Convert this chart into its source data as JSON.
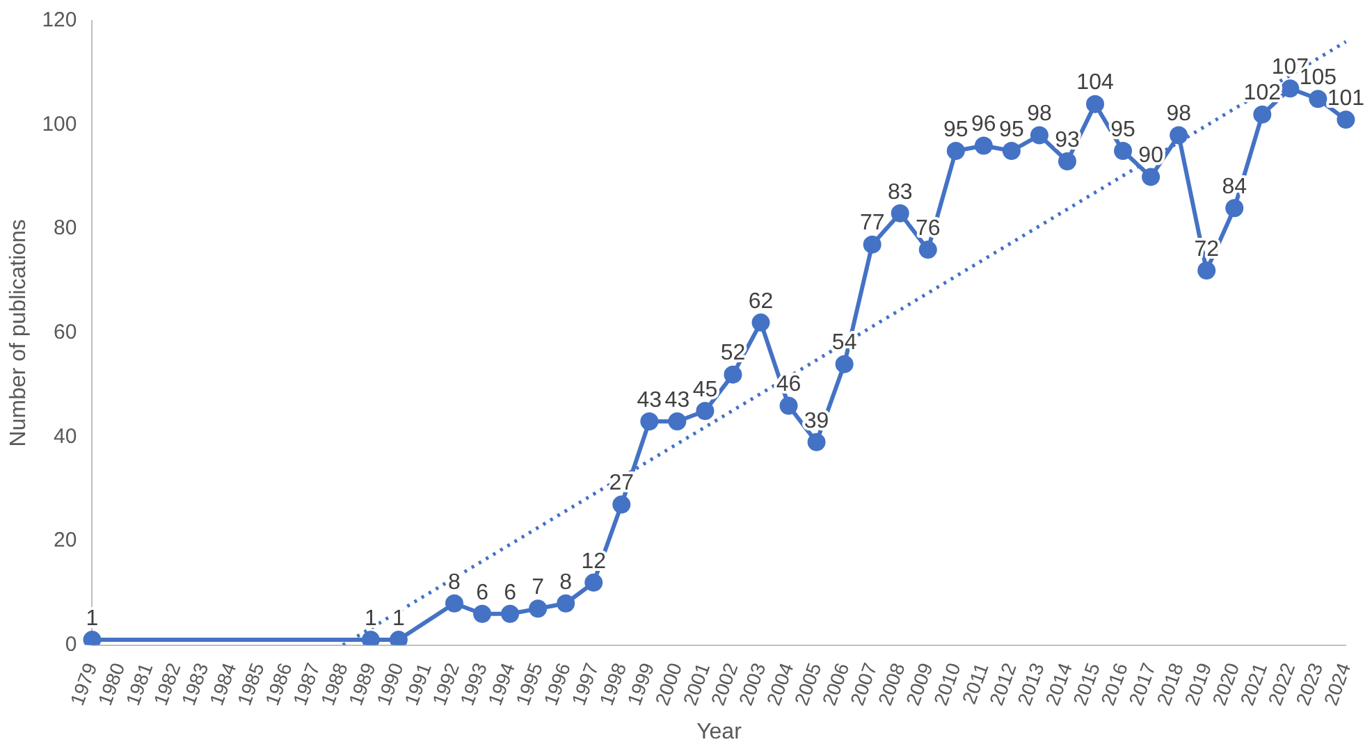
{
  "chart_data": {
    "type": "line",
    "xlabel": "Year",
    "ylabel": "Number of publications",
    "categories": [
      "1979",
      "1980",
      "1981",
      "1982",
      "1983",
      "1984",
      "1985",
      "1986",
      "1987",
      "1988",
      "1989",
      "1990",
      "1991",
      "1992",
      "1993",
      "1994",
      "1995",
      "1996",
      "1997",
      "1998",
      "1999",
      "2000",
      "2001",
      "2002",
      "2003",
      "2004",
      "2005",
      "2006",
      "2007",
      "2008",
      "2009",
      "2010",
      "2011",
      "2012",
      "2013",
      "2014",
      "2015",
      "2016",
      "2017",
      "2018",
      "2019",
      "2020",
      "2021",
      "2022",
      "2023",
      "2024"
    ],
    "series": [
      {
        "color": "#4472c4",
        "marker": "circle",
        "line_style": "solid",
        "values": [
          1,
          null,
          null,
          null,
          null,
          null,
          null,
          null,
          null,
          null,
          1,
          1,
          null,
          8,
          6,
          6,
          7,
          8,
          12,
          27,
          43,
          43,
          45,
          52,
          62,
          46,
          39,
          54,
          77,
          83,
          76,
          95,
          96,
          95,
          98,
          93,
          104,
          95,
          90,
          98,
          72,
          84,
          102,
          107,
          105,
          101
        ],
        "value_labels": [
          "1",
          null,
          null,
          null,
          null,
          null,
          null,
          null,
          null,
          null,
          "1",
          "1",
          null,
          "8",
          "6",
          "6",
          "7",
          "8",
          "12",
          "27",
          "43",
          "43",
          "45",
          "52",
          "62",
          "46",
          "39",
          "54",
          "77",
          "83",
          "76",
          "95",
          "96",
          "95",
          "98",
          "93",
          "104",
          "95",
          "90",
          "98",
          "72",
          "84",
          "102",
          "107",
          "105",
          "101"
        ]
      },
      {
        "type": "line",
        "color": "#4472c4",
        "marker": "none",
        "line_style": "dotted",
        "values": [
          null,
          null,
          null,
          null,
          null,
          null,
          null,
          null,
          null,
          0,
          null,
          null,
          null,
          null,
          null,
          null,
          null,
          null,
          null,
          null,
          null,
          null,
          null,
          null,
          null,
          null,
          null,
          null,
          null,
          null,
          null,
          null,
          null,
          null,
          null,
          null,
          null,
          null,
          null,
          null,
          null,
          null,
          null,
          null,
          null,
          116
        ]
      }
    ],
    "ylim": [
      0,
      120
    ],
    "yticks": [
      0,
      20,
      40,
      60,
      80,
      100,
      120
    ],
    "grid": false,
    "legend": false
  }
}
